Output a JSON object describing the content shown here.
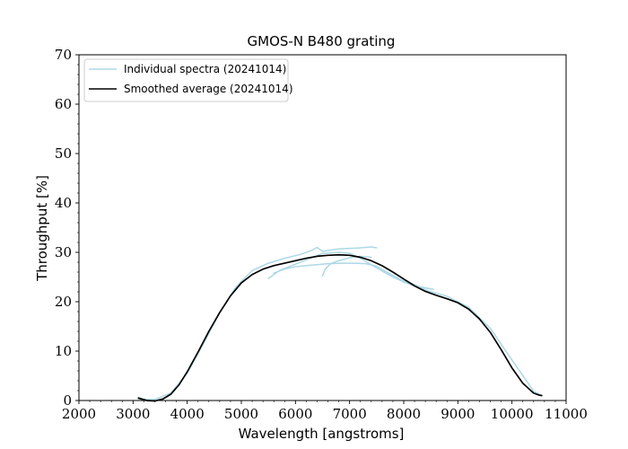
{
  "chart_data": {
    "type": "line",
    "title": "GMOS-N B480 grating",
    "xlabel": "Wavelength [angstroms]",
    "ylabel": "Throughput [%]",
    "xlim": [
      2000,
      11000
    ],
    "ylim": [
      0,
      70
    ],
    "xticks": [
      2000,
      3000,
      4000,
      5000,
      6000,
      7000,
      8000,
      9000,
      10000,
      11000
    ],
    "yticks": [
      0,
      10,
      20,
      30,
      40,
      50,
      60,
      70
    ],
    "legend_position": "top-left",
    "colors": {
      "individual": "#add8e6",
      "average": "#000000"
    },
    "series": [
      {
        "name": "Individual spectra (20241014)",
        "role": "individual",
        "x": [
          3100,
          3400,
          3700,
          4000,
          4300,
          4600,
          4900,
          5200,
          5500,
          5800,
          6100,
          6300,
          6400,
          6500,
          6800,
          7000,
          7200,
          7400,
          7500
        ],
        "y": [
          0.3,
          0.2,
          1.5,
          5.5,
          11.5,
          17.8,
          23.0,
          26.3,
          27.8,
          28.8,
          29.6,
          30.4,
          31.0,
          30.2,
          30.7,
          30.8,
          30.9,
          31.1,
          30.9
        ]
      },
      {
        "role": "individual",
        "x": [
          5500,
          5700,
          6000,
          6300,
          6500,
          6800,
          7000,
          7200,
          7400,
          7600,
          7800,
          8000,
          8200,
          8500
        ],
        "y": [
          24.7,
          26.3,
          27.6,
          28.9,
          29.8,
          30.0,
          29.8,
          28.8,
          27.5,
          26.2,
          25.0,
          24.0,
          23.2,
          22.6
        ]
      },
      {
        "role": "individual",
        "x": [
          5600,
          5800,
          6000,
          6300,
          6600,
          6900,
          7100,
          7300,
          7500,
          7700,
          8000,
          8300,
          8550
        ],
        "y": [
          25.8,
          26.6,
          27.1,
          27.4,
          27.7,
          27.8,
          27.8,
          27.7,
          27.2,
          25.9,
          24.2,
          23.0,
          22.5
        ]
      },
      {
        "role": "individual",
        "x": [
          6500,
          6550,
          6650,
          6800,
          7000,
          7200,
          7400
        ],
        "y": [
          25.2,
          26.6,
          27.7,
          28.3,
          28.9,
          29.2,
          29.0
        ]
      },
      {
        "role": "individual",
        "x": [
          8000,
          8400,
          8800,
          9200,
          9600,
          10000,
          10400,
          10550
        ],
        "y": [
          24.5,
          22.4,
          21.1,
          18.9,
          14.6,
          8.2,
          1.9,
          1.0
        ]
      },
      {
        "name": "Smoothed average (20241014)",
        "role": "average",
        "x": [
          3100,
          3250,
          3400,
          3550,
          3700,
          3850,
          4000,
          4200,
          4400,
          4600,
          4800,
          5000,
          5200,
          5400,
          5600,
          5800,
          6000,
          6200,
          6400,
          6600,
          6800,
          7000,
          7200,
          7400,
          7600,
          7800,
          8000,
          8200,
          8400,
          8600,
          8800,
          9000,
          9200,
          9400,
          9600,
          9800,
          10000,
          10200,
          10400,
          10500,
          10550
        ],
        "y": [
          0.5,
          0.0,
          -0.1,
          0.3,
          1.3,
          3.2,
          5.8,
          9.8,
          14.0,
          17.8,
          21.2,
          23.8,
          25.5,
          26.6,
          27.3,
          27.8,
          28.3,
          28.8,
          29.2,
          29.4,
          29.5,
          29.4,
          29.0,
          28.3,
          27.3,
          26.0,
          24.6,
          23.2,
          22.1,
          21.3,
          20.6,
          19.8,
          18.5,
          16.5,
          13.8,
          10.3,
          6.6,
          3.5,
          1.5,
          1.1,
          1.0
        ]
      }
    ]
  }
}
